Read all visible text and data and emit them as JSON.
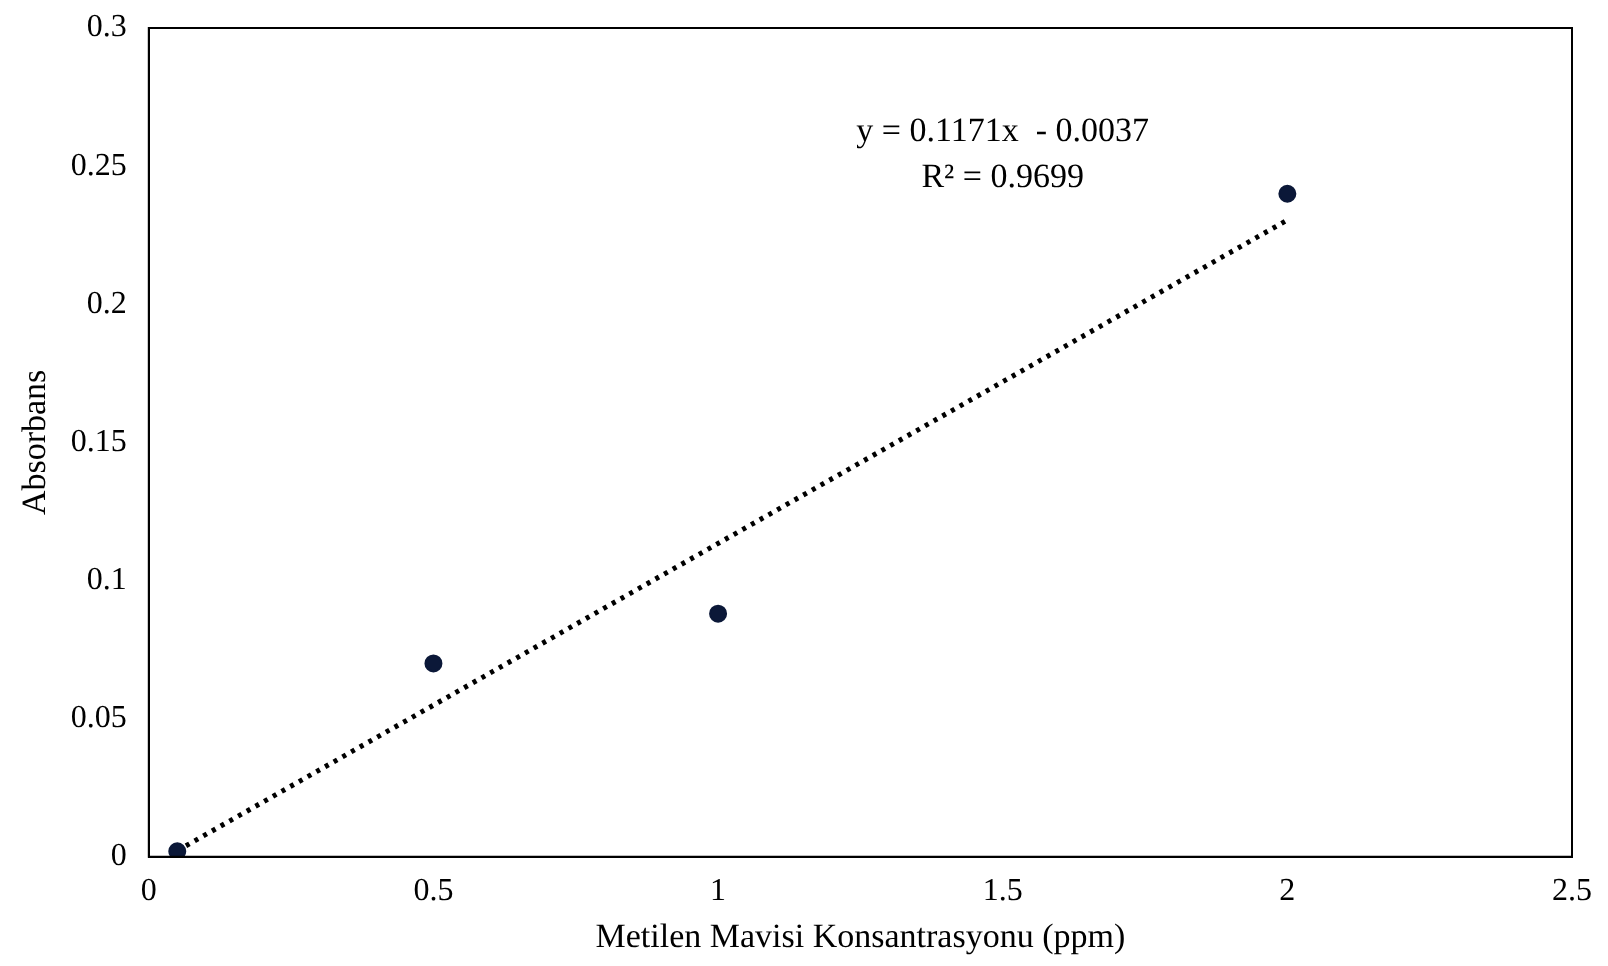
{
  "chart_data": {
    "type": "scatter",
    "xlabel": "Metilen Mavisi Konsantrasyonu (ppm)",
    "ylabel": "Absorbans",
    "series": [
      {
        "color": "#0b1838",
        "marker": "circle",
        "x": [
          0.05,
          0.5,
          1,
          2
        ],
        "values": [
          0.002,
          0.07,
          0.088,
          0.24
        ]
      },
      {
        "type": "line",
        "color": "#000000",
        "marker": "none",
        "line_style": "dotted",
        "x": [
          0.05,
          2
        ],
        "values": [
          0.0022,
          0.2305
        ]
      }
    ],
    "xlim": [
      0,
      2.5
    ],
    "xticks": [
      0,
      0.5,
      1,
      1.5,
      2,
      2.5
    ],
    "ylim": [
      0,
      0.3
    ],
    "yticks": [
      0,
      0.05,
      0.1,
      0.15,
      0.2,
      0.25,
      0.3
    ],
    "grid": false,
    "legend": false,
    "annotations": [
      "y = 0.1171x  - 0.0037",
      "R² = 0.9699"
    ]
  }
}
